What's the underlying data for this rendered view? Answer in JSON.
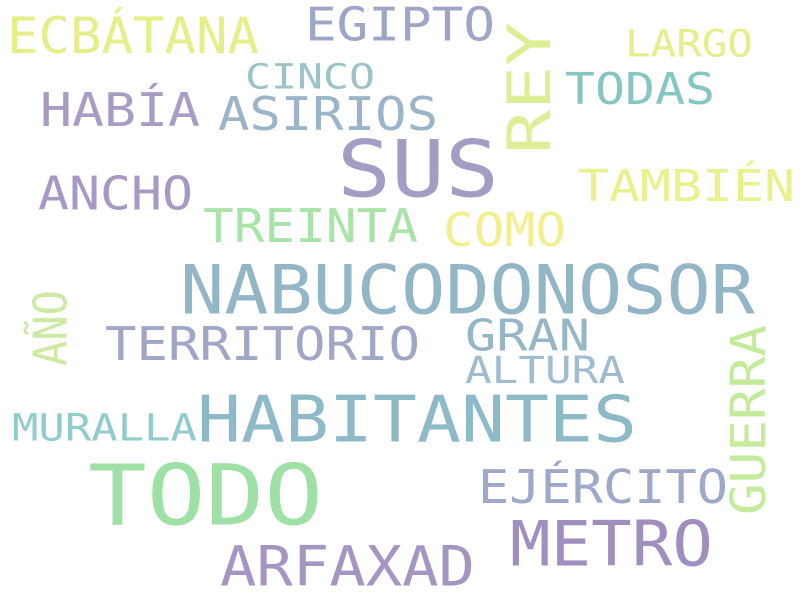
{
  "words": [
    {
      "text": "ECBÁTANA",
      "color": "#e6ee8a"
    },
    {
      "text": "EGIPTO",
      "color": "#9ea6c8"
    },
    {
      "text": "REY",
      "color": "#dcee96"
    },
    {
      "text": "LARGO",
      "color": "#e6ee8a"
    },
    {
      "text": "CINCO",
      "color": "#9cc4c8"
    },
    {
      "text": "TODAS",
      "color": "#86c6c2"
    },
    {
      "text": "HABÍA",
      "color": "#a89cc6"
    },
    {
      "text": "ASIRIOS",
      "color": "#9cb4c8"
    },
    {
      "text": "SUS",
      "color": "#a39dc4"
    },
    {
      "text": "ANCHO",
      "color": "#a798c4"
    },
    {
      "text": "TAMBIÉN",
      "color": "#eaf08c"
    },
    {
      "text": "TREINTA",
      "color": "#a8e4a8"
    },
    {
      "text": "COMO",
      "color": "#f2f08e"
    },
    {
      "text": "NABUCODONOSOR",
      "color": "#92b6c6"
    },
    {
      "text": "AÑO",
      "color": "#cdeaa4"
    },
    {
      "text": "TERRITORIO",
      "color": "#a0a6c6"
    },
    {
      "text": "GRAN",
      "color": "#94b6c6"
    },
    {
      "text": "ALTURA",
      "color": "#a0bcd0"
    },
    {
      "text": "GUERRA",
      "color": "#c4ea9c"
    },
    {
      "text": "MURALLA",
      "color": "#90cccc"
    },
    {
      "text": "HABITANTES",
      "color": "#8ebac8"
    },
    {
      "text": "TODO",
      "color": "#9ee0a6"
    },
    {
      "text": "EJÉRCITO",
      "color": "#9ea8c8"
    },
    {
      "text": "METRO",
      "color": "#a08fbe"
    },
    {
      "text": "ARFAXAD",
      "color": "#a595c2"
    }
  ]
}
